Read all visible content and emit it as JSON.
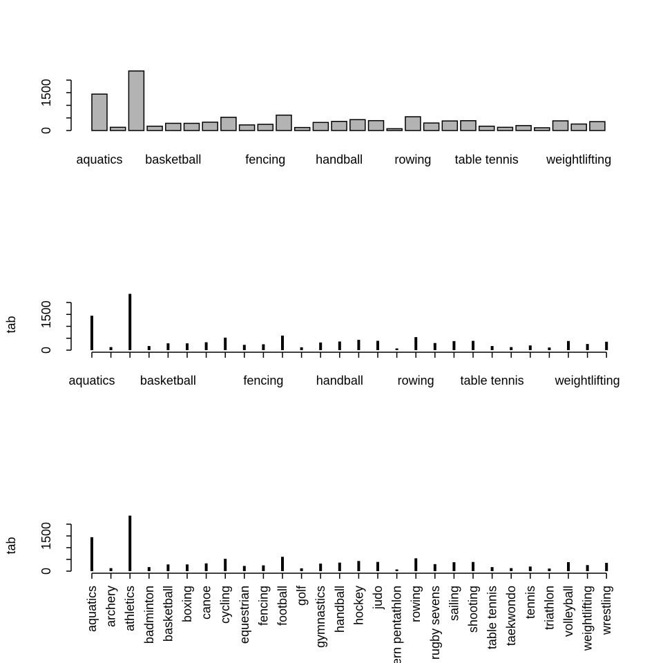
{
  "chart_data": [
    {
      "type": "bar",
      "ylabel": "",
      "ylim": [
        0,
        2000
      ],
      "y_ticks": [
        0,
        500,
        1000,
        1500,
        2000
      ],
      "y_tick_labels": [
        "0",
        "1500"
      ],
      "bar_color": "#b3b3b3"
    },
    {
      "type": "bar",
      "style": "spike",
      "ylabel": "tab",
      "ylim": [
        0,
        2000
      ],
      "y_ticks": [
        0,
        500,
        1000,
        1500,
        2000
      ],
      "y_tick_labels": [
        "0",
        "1500"
      ]
    },
    {
      "type": "bar",
      "style": "spike",
      "ylabel": "tab",
      "ylim": [
        0,
        2000
      ],
      "y_ticks": [
        0,
        500,
        1000,
        1500,
        2000
      ],
      "y_tick_labels": [
        "0",
        "1500"
      ],
      "x_labels_rotated": true
    }
  ],
  "categories": [
    "aquatics",
    "archery",
    "athletics",
    "badminton",
    "basketball",
    "boxing",
    "canoe",
    "cycling",
    "equestrian",
    "fencing",
    "football",
    "golf",
    "gymnastics",
    "handball",
    "hockey",
    "judo",
    "modern pentathlon",
    "rowing",
    "rugby sevens",
    "sailing",
    "shooting",
    "table tennis",
    "taekwondo",
    "tennis",
    "triathlon",
    "volleyball",
    "weightlifting",
    "wrestling"
  ],
  "values": [
    1445,
    128,
    2363,
    172,
    287,
    286,
    331,
    525,
    222,
    246,
    611,
    120,
    321,
    363,
    432,
    392,
    72,
    547,
    299,
    380,
    390,
    172,
    128,
    196,
    110,
    384,
    258,
    353
  ]
}
